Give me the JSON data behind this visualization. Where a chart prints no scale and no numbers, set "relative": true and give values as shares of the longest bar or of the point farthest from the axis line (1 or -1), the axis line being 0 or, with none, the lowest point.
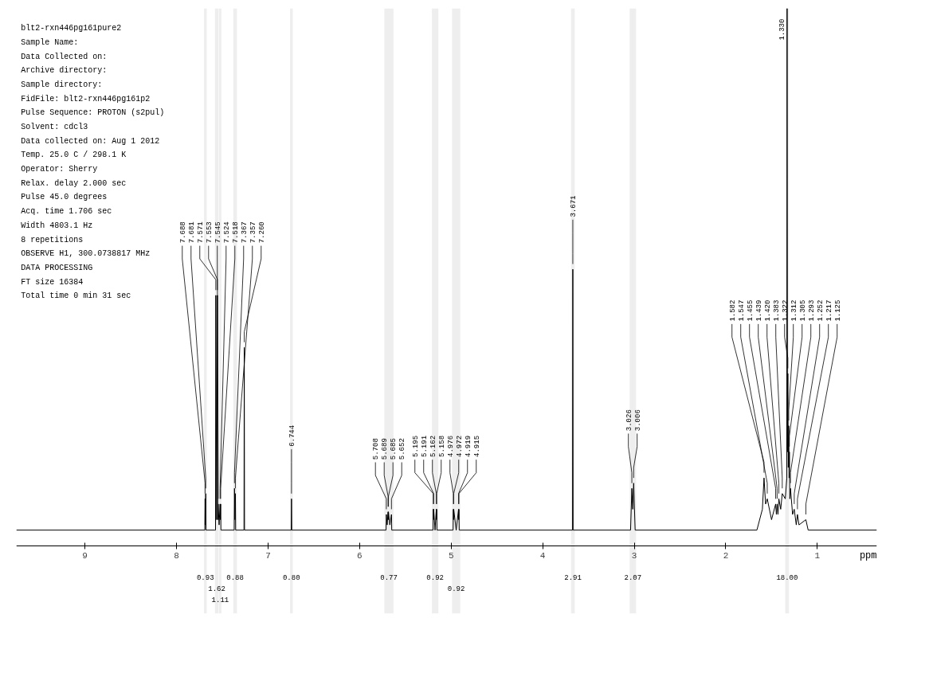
{
  "chart_data": {
    "type": "line",
    "relative": true,
    "xlabel": "ppm",
    "xlim": [
      9.75,
      0.35
    ],
    "xticks": [
      9,
      8,
      7,
      6,
      5,
      4,
      3,
      2,
      1
    ],
    "grid": false,
    "marker": "none",
    "line_style": "solid",
    "bands": [
      {
        "axis": "x",
        "from": 7.7,
        "to": 7.67,
        "label": "0.93"
      },
      {
        "axis": "x",
        "from": 7.58,
        "to": 7.54,
        "label": "1.62"
      },
      {
        "axis": "x",
        "from": 7.535,
        "to": 7.51,
        "label": "1.11"
      },
      {
        "axis": "x",
        "from": 7.38,
        "to": 7.34,
        "label": "0.88"
      },
      {
        "axis": "x",
        "from": 6.76,
        "to": 6.73,
        "label": "0.80"
      },
      {
        "axis": "x",
        "from": 5.73,
        "to": 5.63,
        "label": "0.77"
      },
      {
        "axis": "x",
        "from": 5.21,
        "to": 5.14,
        "label": "0.92"
      },
      {
        "axis": "x",
        "from": 4.99,
        "to": 4.9,
        "label": "0.92"
      },
      {
        "axis": "x",
        "from": 3.69,
        "to": 3.65,
        "label": "2.91"
      },
      {
        "axis": "x",
        "from": 3.05,
        "to": 2.98,
        "label": "2.07"
      },
      {
        "axis": "x",
        "from": 1.35,
        "to": 1.31,
        "label": "18.00"
      }
    ],
    "series": [
      {
        "color": "#000000",
        "x": [
          9.75,
          7.7,
          7.691,
          7.688,
          7.685,
          7.681,
          7.678,
          7.58,
          7.574,
          7.571,
          7.562,
          7.553,
          7.549,
          7.545,
          7.535,
          7.524,
          7.521,
          7.518,
          7.515,
          7.37,
          7.367,
          7.362,
          7.357,
          7.354,
          7.263,
          7.26,
          7.257,
          6.747,
          6.744,
          6.741,
          5.711,
          5.708,
          5.699,
          5.689,
          5.687,
          5.685,
          5.67,
          5.652,
          5.649,
          5.198,
          5.195,
          5.193,
          5.191,
          5.176,
          5.162,
          5.16,
          5.158,
          5.155,
          4.979,
          4.976,
          4.974,
          4.972,
          4.945,
          4.919,
          4.917,
          4.915,
          4.912,
          3.674,
          3.671,
          3.668,
          3.04,
          3.026,
          3.016,
          3.006,
          2.99,
          1.66,
          1.6,
          1.582,
          1.565,
          1.547,
          1.5,
          1.455,
          1.447,
          1.439,
          1.43,
          1.42,
          1.4,
          1.383,
          1.35,
          1.333,
          1.33,
          1.326,
          1.322,
          1.317,
          1.312,
          1.308,
          1.305,
          1.3,
          1.293,
          1.27,
          1.252,
          1.23,
          1.217,
          1.2,
          1.125,
          1.1,
          0.35
        ],
        "values": [
          0,
          0,
          0,
          0.06,
          0.01,
          0.07,
          0,
          0,
          0,
          0.45,
          0.02,
          0.45,
          0.02,
          0.05,
          0.01,
          0.05,
          0.02,
          0.05,
          0,
          0,
          0.08,
          0.02,
          0.07,
          0,
          0,
          0.35,
          0,
          0,
          0.06,
          0,
          0,
          0.03,
          0.01,
          0.035,
          0.02,
          0.035,
          0.01,
          0.03,
          0,
          0,
          0.04,
          0.02,
          0.04,
          0,
          0.04,
          0.02,
          0.04,
          0,
          0,
          0.04,
          0.02,
          0.04,
          0,
          0.04,
          0.02,
          0.04,
          0,
          0,
          0.5,
          0,
          0,
          0.08,
          0.04,
          0.09,
          0,
          0,
          0.04,
          0.1,
          0.05,
          0.06,
          0.02,
          0.05,
          0.03,
          0.05,
          0.03,
          0.06,
          0.04,
          0.07,
          0.06,
          0.1,
          1.0,
          0.15,
          0.3,
          0.12,
          0.2,
          0.1,
          0.15,
          0.06,
          0.08,
          0.03,
          0.04,
          0.01,
          0.03,
          0.01,
          0.02,
          0,
          0
        ]
      }
    ],
    "annotations": [
      "blt2-rxn446pg161pure2",
      "Sample Name:",
      "Data Collected on:",
      "Archive directory:",
      "Sample directory:",
      "FidFile: blt2-rxn446pg161p2",
      "Pulse Sequence: PROTON (s2pul)",
      "Solvent: cdcl3",
      "Data collected on: Aug  1 2012",
      "Temp. 25.0 C / 298.1 K",
      "Operator: Sherry",
      "Relax. delay 2.000 sec",
      "Pulse 45.0 degrees",
      "Acq. time 1.706 sec",
      "Width 4803.1 Hz",
      "8 repetitions",
      "OBSERVE   H1, 300.0738817 MHz",
      "DATA PROCESSING",
      "FT size 16384",
      "Total time 0 min 31 sec",
      {
        "text": "7.688",
        "x": 7.688,
        "y": 0.06
      },
      {
        "text": "7.681",
        "x": 7.681,
        "y": 0.07
      },
      {
        "text": "7.571",
        "x": 7.571,
        "y": 0.45
      },
      {
        "text": "7.553",
        "x": 7.553,
        "y": 0.45
      },
      {
        "text": "7.545",
        "x": 7.545,
        "y": 0.05
      },
      {
        "text": "7.524",
        "x": 7.524,
        "y": 0.05
      },
      {
        "text": "7.518",
        "x": 7.518,
        "y": 0.05
      },
      {
        "text": "7.367",
        "x": 7.367,
        "y": 0.08
      },
      {
        "text": "7.357",
        "x": 7.357,
        "y": 0.07
      },
      {
        "text": "7.260",
        "x": 7.26,
        "y": 0.35
      },
      {
        "text": "6.744",
        "x": 6.744,
        "y": 0.06
      },
      {
        "text": "5.708",
        "x": 5.708,
        "y": 0.03
      },
      {
        "text": "5.689",
        "x": 5.689,
        "y": 0.035
      },
      {
        "text": "5.685",
        "x": 5.685,
        "y": 0.035
      },
      {
        "text": "5.652",
        "x": 5.652,
        "y": 0.03
      },
      {
        "text": "5.195",
        "x": 5.195,
        "y": 0.04
      },
      {
        "text": "5.191",
        "x": 5.191,
        "y": 0.04
      },
      {
        "text": "5.162",
        "x": 5.162,
        "y": 0.04
      },
      {
        "text": "5.158",
        "x": 5.158,
        "y": 0.04
      },
      {
        "text": "4.976",
        "x": 4.976,
        "y": 0.04
      },
      {
        "text": "4.972",
        "x": 4.972,
        "y": 0.04
      },
      {
        "text": "4.919",
        "x": 4.919,
        "y": 0.04
      },
      {
        "text": "4.915",
        "x": 4.915,
        "y": 0.04
      },
      {
        "text": "3.671",
        "x": 3.671,
        "y": 0.5
      },
      {
        "text": "3.026",
        "x": 3.026,
        "y": 0.08
      },
      {
        "text": "3.006",
        "x": 3.006,
        "y": 0.09
      },
      {
        "text": "1.582",
        "x": 1.582,
        "y": 0.1
      },
      {
        "text": "1.547",
        "x": 1.547,
        "y": 0.06
      },
      {
        "text": "1.455",
        "x": 1.455,
        "y": 0.05
      },
      {
        "text": "1.439",
        "x": 1.439,
        "y": 0.05
      },
      {
        "text": "1.420",
        "x": 1.42,
        "y": 0.06
      },
      {
        "text": "1.383",
        "x": 1.383,
        "y": 0.07
      },
      {
        "text": "1.330",
        "x": 1.33,
        "y": 1.0
      },
      {
        "text": "1.322",
        "x": 1.322,
        "y": 0.3
      },
      {
        "text": "1.312",
        "x": 1.312,
        "y": 0.2
      },
      {
        "text": "1.305",
        "x": 1.305,
        "y": 0.15
      },
      {
        "text": "1.293",
        "x": 1.293,
        "y": 0.08
      },
      {
        "text": "1.252",
        "x": 1.252,
        "y": 0.04
      },
      {
        "text": "1.217",
        "x": 1.217,
        "y": 0.03
      },
      {
        "text": "1.125",
        "x": 1.125,
        "y": 0.02
      }
    ]
  }
}
